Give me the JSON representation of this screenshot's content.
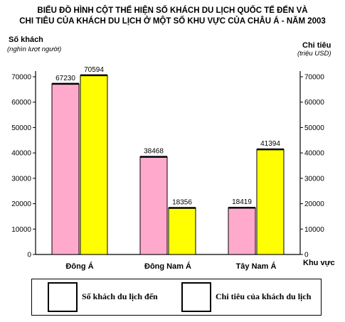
{
  "header": {
    "title_line1": "BIỂU ĐỒ HÌNH CỘT THỂ HIỆN SỐ KHÁCH DU LỊCH QUỐC TẾ ĐẾN VÀ",
    "title_line2": "CHI TIÊU CỦA KHÁCH DU LỊCH Ở MỘT SỐ KHU VỰC CỦA CHÂU Á - NĂM 2003"
  },
  "axes": {
    "left_title": "Số khách",
    "left_unit": "(nghìn lượt người)",
    "right_title": "Chi tiêu",
    "right_unit": "(triệu USD)",
    "x_title": "Khu vực"
  },
  "legend": {
    "visitors_label": "Số khách du lịch đến",
    "spending_label": "Chi tiêu của khách du lịch"
  },
  "colors": {
    "visitors": "#ffff00",
    "spending": "#ffaacc",
    "outline": "#000000"
  },
  "chart_data": {
    "type": "bar",
    "title": "BIỂU ĐỒ HÌNH CỘT THỂ HIỆN SỐ KHÁCH DU LỊCH QUỐC TẾ ĐẾN VÀ CHI TIÊU CỦA KHÁCH DU LỊCH Ở MỘT SỐ KHU VỰC CỦA CHÂU Á - NĂM 2003",
    "xlabel": "Khu vực",
    "ylabel": "Số khách (nghìn lượt người)",
    "y2label": "Chi tiêu (triệu USD)",
    "categories": [
      "Đông Á",
      "Đông Nam Á",
      "Tây Nam Á"
    ],
    "series": [
      {
        "name": "Chi tiêu của khách du lịch",
        "values": [
          70594,
          18356,
          41394
        ],
        "axis": "right",
        "color": "#ffaacc"
      },
      {
        "name": "Số khách du lịch đến",
        "values": [
          67230,
          38468,
          18419
        ],
        "axis": "left",
        "color": "#ffff00"
      }
    ],
    "bar_order": [
      "Số khách du lịch đến",
      "Chi tiêu của khách du lịch"
    ],
    "ylim": [
      0,
      70000
    ],
    "y2lim": [
      0,
      70000
    ],
    "yticks": [
      0,
      10000,
      20000,
      30000,
      40000,
      50000,
      60000,
      70000
    ],
    "grid": false,
    "legend_position": "bottom"
  }
}
